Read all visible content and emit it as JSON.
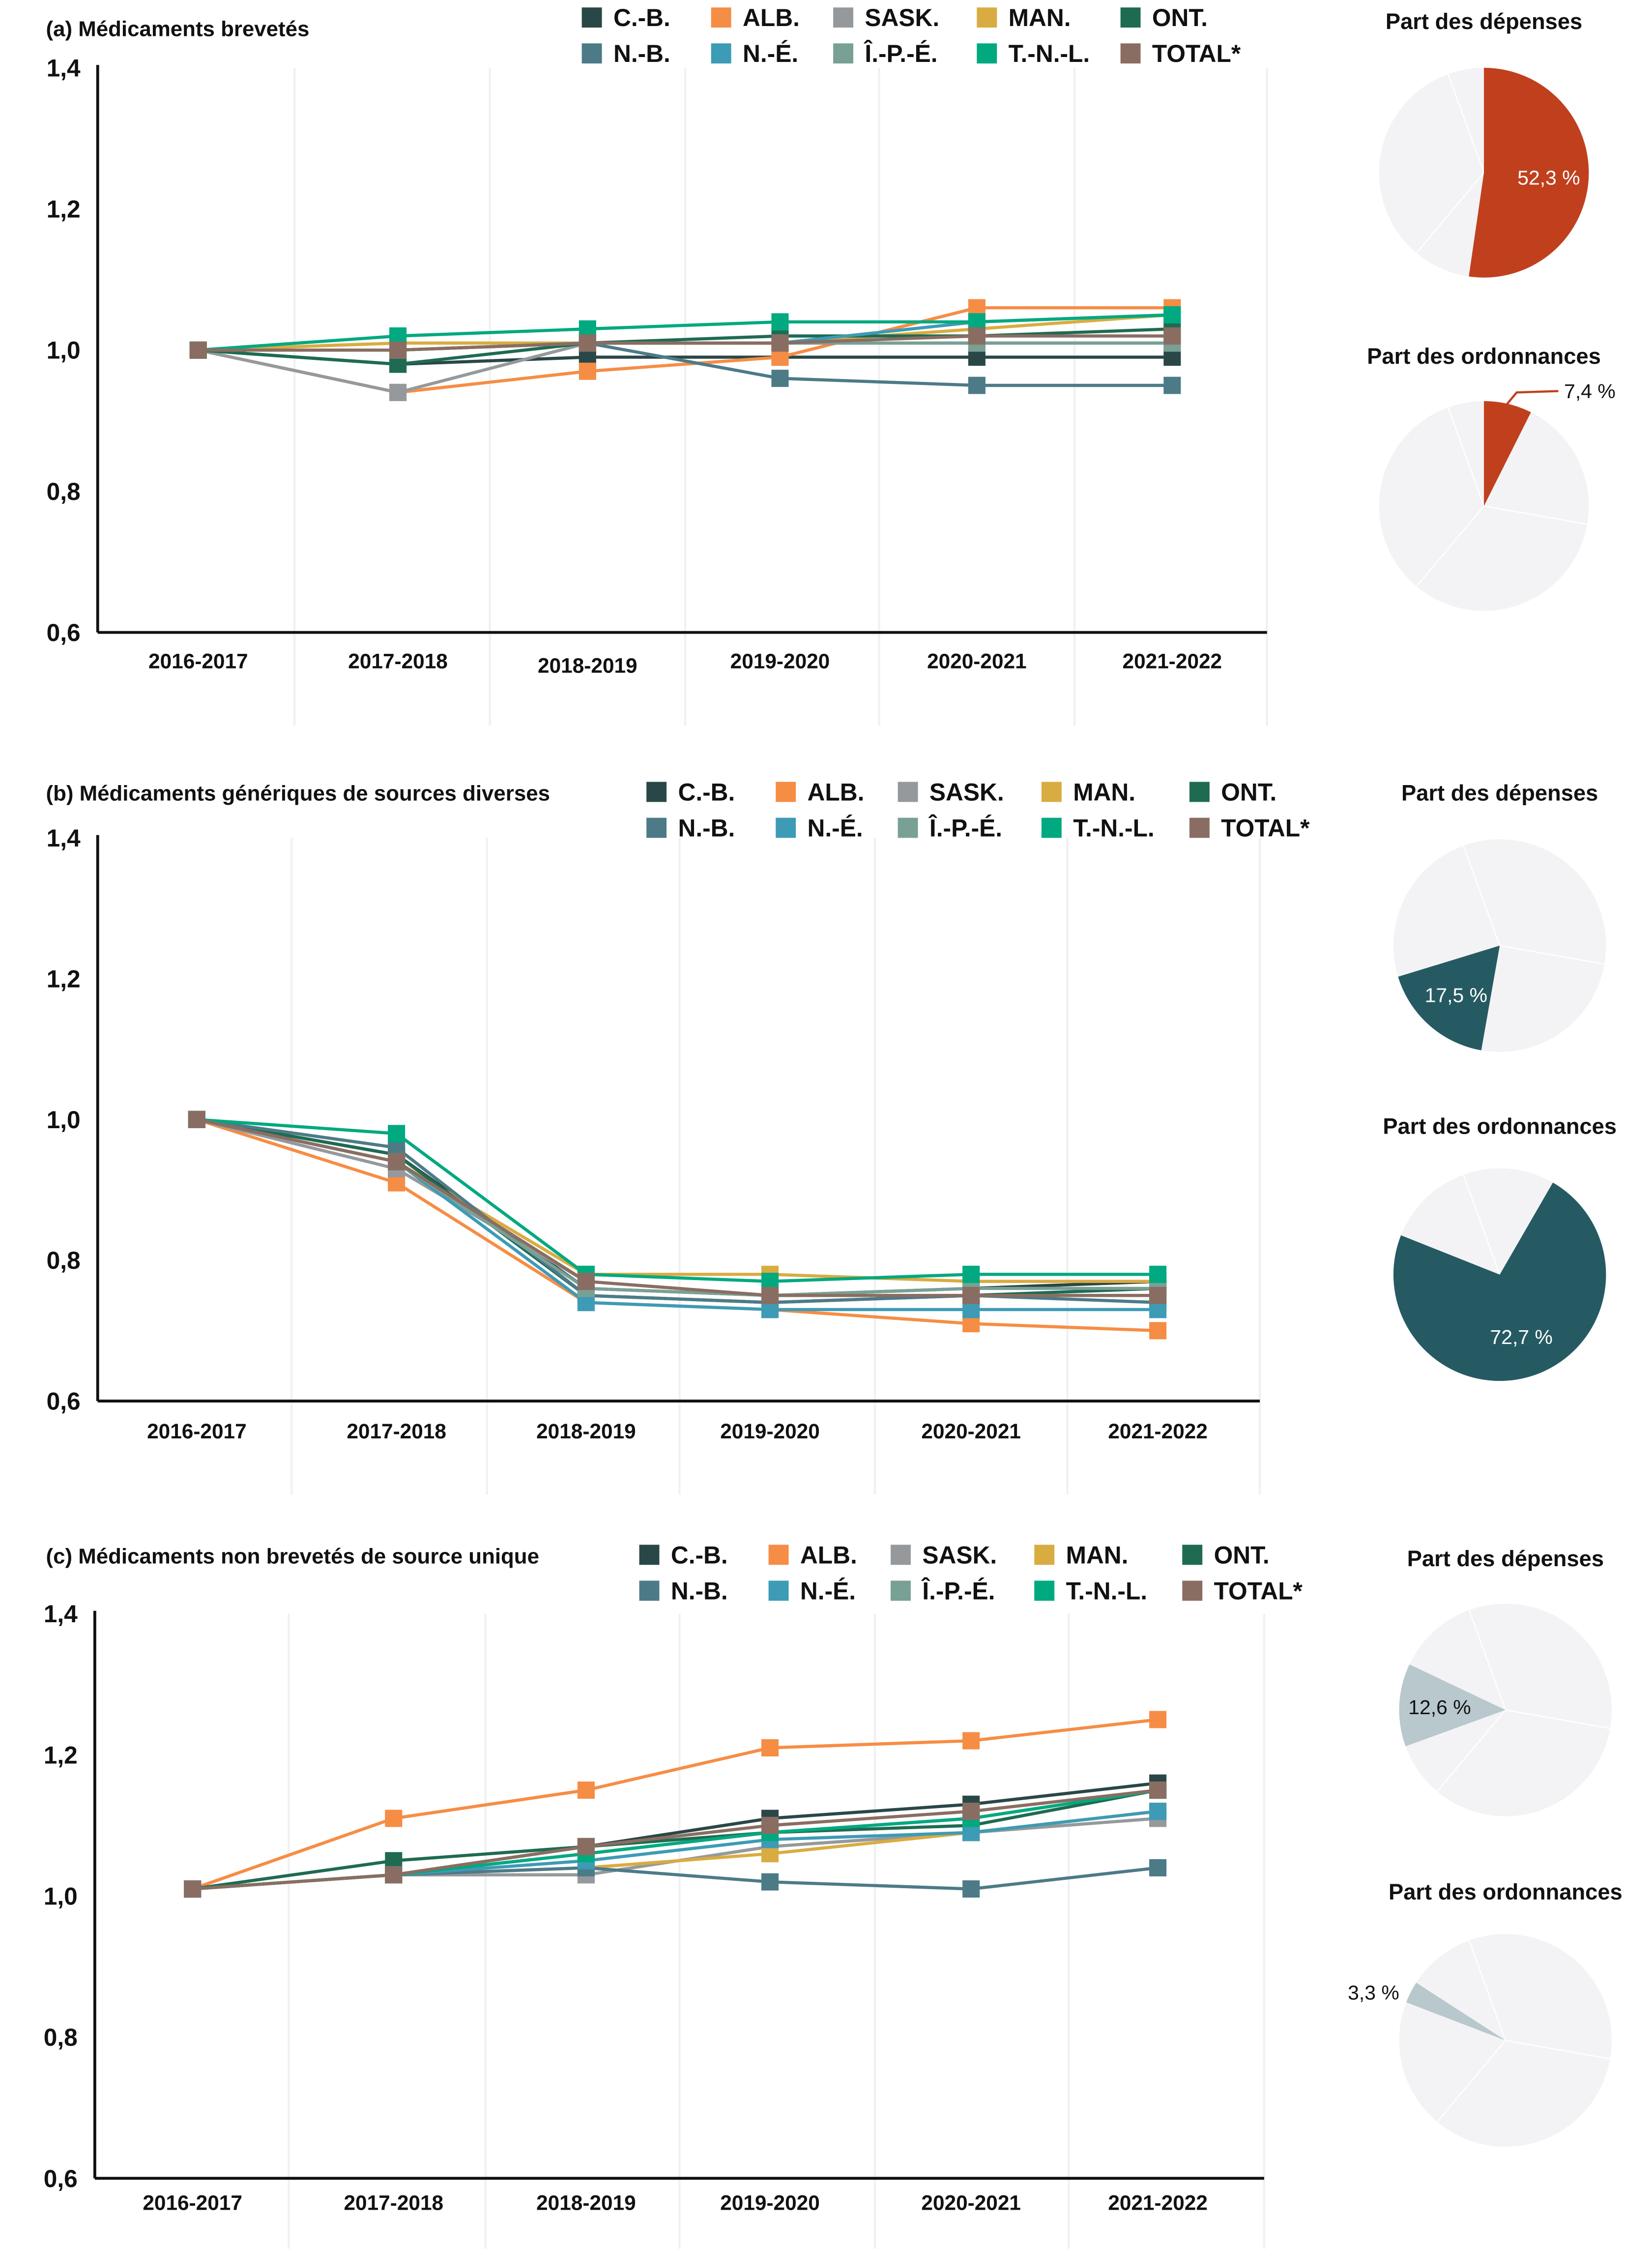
{
  "legend": [
    {
      "name": "C.-B.",
      "color": "#2a4747"
    },
    {
      "name": "ALB.",
      "color": "#f68d45"
    },
    {
      "name": "SASK.",
      "color": "#95999c"
    },
    {
      "name": "MAN.",
      "color": "#d9ac41"
    },
    {
      "name": "ONT.",
      "color": "#1e6b52"
    },
    {
      "name": "N.-B.",
      "color": "#4c7b87"
    },
    {
      "name": "N.-É.",
      "color": "#3d9bb6"
    },
    {
      "name": "Î.-P.-É.",
      "color": "#79a095"
    },
    {
      "name": "T.-N.-L.",
      "color": "#00a97f"
    },
    {
      "name": "TOTAL*",
      "color": "#8a6d62"
    }
  ],
  "chart_data": [
    {
      "type": "line",
      "title": "(a) Médicaments brevetés",
      "categories": [
        "2016-2017",
        "2017-2018",
        "2018-2019",
        "2019-2020",
        "2020-2021",
        "2021-2022"
      ],
      "yticks": [
        "1,4",
        "1,2",
        "1,0",
        "0,8",
        "0,6"
      ],
      "ylim": [
        0.6,
        1.4
      ],
      "grid": "vertical",
      "series": [
        {
          "name": "C.-B.",
          "values": [
            1.0,
            0.98,
            0.99,
            0.99,
            0.99,
            0.99
          ]
        },
        {
          "name": "ALB.",
          "values": [
            1.0,
            0.94,
            0.97,
            0.99,
            1.06,
            1.06
          ]
        },
        {
          "name": "SASK.",
          "values": [
            1.0,
            0.94,
            1.01,
            1.01,
            1.01,
            1.01
          ]
        },
        {
          "name": "MAN.",
          "values": [
            1.0,
            1.01,
            1.01,
            1.01,
            1.03,
            1.05
          ]
        },
        {
          "name": "ONT.",
          "values": [
            1.0,
            0.98,
            1.01,
            1.02,
            1.02,
            1.03
          ]
        },
        {
          "name": "N.-B.",
          "values": [
            1.0,
            1.0,
            1.01,
            0.96,
            0.95,
            0.95
          ]
        },
        {
          "name": "N.-É.",
          "values": [
            1.0,
            1.0,
            1.01,
            1.01,
            1.04,
            1.05
          ]
        },
        {
          "name": "Î.-P.-É.",
          "values": [
            1.0,
            1.0,
            1.01,
            1.01,
            1.01,
            1.01
          ]
        },
        {
          "name": "T.-N.-L.",
          "values": [
            1.0,
            1.02,
            1.03,
            1.04,
            1.04,
            1.05
          ]
        },
        {
          "name": "TOTAL*",
          "values": [
            1.0,
            1.0,
            1.01,
            1.01,
            1.02,
            1.02
          ]
        }
      ],
      "pies": [
        {
          "title": "Part des dépenses",
          "value": 52.3,
          "label": "52,3 %",
          "color": "#c0401e"
        },
        {
          "title": "Part des ordonnances",
          "value": 7.4,
          "label": "7,4 %",
          "color": "#c0401e"
        }
      ]
    },
    {
      "type": "line",
      "title": "(b) Médicaments génériques de sources diverses",
      "categories": [
        "2016-2017",
        "2017-2018",
        "2018-2019",
        "2019-2020",
        "2020-2021",
        "2021-2022"
      ],
      "yticks": [
        "1,4",
        "1,2",
        "1,0",
        "0,8",
        "0,6"
      ],
      "ylim": [
        0.6,
        1.4
      ],
      "grid": "vertical",
      "series": [
        {
          "name": "C.-B.",
          "values": [
            1.0,
            0.95,
            0.76,
            0.75,
            0.76,
            0.77
          ]
        },
        {
          "name": "ALB.",
          "values": [
            1.0,
            0.91,
            0.74,
            0.73,
            0.71,
            0.7
          ]
        },
        {
          "name": "SASK.",
          "values": [
            1.0,
            0.93,
            0.77,
            0.75,
            0.75,
            0.75
          ]
        },
        {
          "name": "MAN.",
          "values": [
            1.0,
            0.94,
            0.78,
            0.78,
            0.77,
            0.77
          ]
        },
        {
          "name": "ONT.",
          "values": [
            1.0,
            0.95,
            0.75,
            0.74,
            0.75,
            0.76
          ]
        },
        {
          "name": "N.-B.",
          "values": [
            1.0,
            0.96,
            0.75,
            0.74,
            0.75,
            0.74
          ]
        },
        {
          "name": "N.-É.",
          "values": [
            1.0,
            0.94,
            0.74,
            0.73,
            0.73,
            0.73
          ]
        },
        {
          "name": "Î.-P.-É.",
          "values": [
            1.0,
            0.94,
            0.76,
            0.75,
            0.76,
            0.76
          ]
        },
        {
          "name": "T.-N.-L.",
          "values": [
            1.0,
            0.98,
            0.78,
            0.77,
            0.78,
            0.78
          ]
        },
        {
          "name": "TOTAL*",
          "values": [
            1.0,
            0.94,
            0.77,
            0.75,
            0.75,
            0.75
          ]
        }
      ],
      "pies": [
        {
          "title": "Part des dépenses",
          "value": 17.5,
          "label": "17,5 %",
          "color": "#265a63"
        },
        {
          "title": "Part des ordonnances",
          "value": 72.7,
          "label": "72,7 %",
          "color": "#265a63"
        }
      ]
    },
    {
      "type": "line",
      "title": "(c) Médicaments non brevetés de source unique",
      "categories": [
        "2016-2017",
        "2017-2018",
        "2018-2019",
        "2019-2020",
        "2020-2021",
        "2021-2022"
      ],
      "yticks": [
        "1,4",
        "1,2",
        "1,0",
        "0,8",
        "0,6"
      ],
      "ylim": [
        0.6,
        1.4
      ],
      "grid": "vertical",
      "series": [
        {
          "name": "C.-B.",
          "values": [
            1.01,
            1.03,
            1.07,
            1.11,
            1.13,
            1.16
          ]
        },
        {
          "name": "ALB.",
          "values": [
            1.01,
            1.11,
            1.15,
            1.21,
            1.22,
            1.25
          ]
        },
        {
          "name": "SASK.",
          "values": [
            1.01,
            1.03,
            1.03,
            1.07,
            1.09,
            1.11
          ]
        },
        {
          "name": "MAN.",
          "values": [
            1.01,
            1.03,
            1.04,
            1.06,
            1.09,
            1.12
          ]
        },
        {
          "name": "ONT.",
          "values": [
            1.01,
            1.05,
            1.07,
            1.09,
            1.1,
            1.15
          ]
        },
        {
          "name": "N.-B.",
          "values": [
            1.01,
            1.03,
            1.04,
            1.02,
            1.01,
            1.04
          ]
        },
        {
          "name": "N.-É.",
          "values": [
            1.01,
            1.03,
            1.05,
            1.08,
            1.09,
            1.12
          ]
        },
        {
          "name": "Î.-P.-É.",
          "values": [
            1.01,
            1.03,
            1.06,
            1.09,
            1.11,
            1.15
          ]
        },
        {
          "name": "T.-N.-L.",
          "values": [
            1.01,
            1.03,
            1.06,
            1.09,
            1.11,
            1.15
          ]
        },
        {
          "name": "TOTAL*",
          "values": [
            1.01,
            1.03,
            1.07,
            1.1,
            1.12,
            1.15
          ]
        }
      ],
      "pies": [
        {
          "title": "Part des dépenses",
          "value": 12.6,
          "label": "12,6 %",
          "color": "#b8c8cd"
        },
        {
          "title": "Part des ordonnances",
          "value": 3.3,
          "label": "3,3 %",
          "color": "#b8c8cd"
        }
      ]
    }
  ]
}
